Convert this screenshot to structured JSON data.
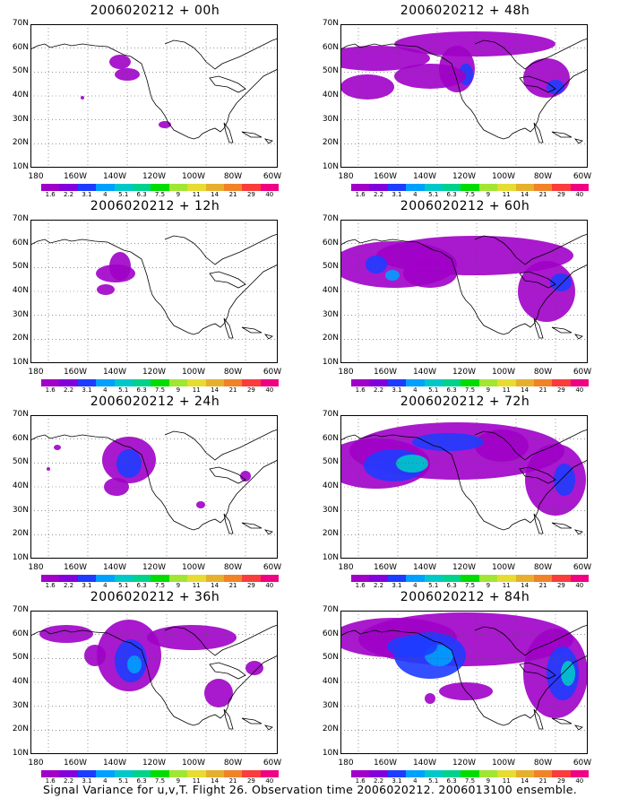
{
  "panels": [
    {
      "title": "2006020212 + 00h"
    },
    {
      "title": "2006020212 + 48h"
    },
    {
      "title": "2006020212 + 12h"
    },
    {
      "title": "2006020212 + 60h"
    },
    {
      "title": "2006020212 + 24h"
    },
    {
      "title": "2006020212 + 72h"
    },
    {
      "title": "2006020212 + 36h"
    },
    {
      "title": "2006020212 + 84h"
    }
  ],
  "lat_labels": [
    "70N",
    "60N",
    "50N",
    "40N",
    "30N",
    "20N",
    "10N"
  ],
  "lon_labels": [
    "180",
    "160W",
    "140W",
    "120W",
    "100W",
    "80W",
    "60W"
  ],
  "colorbar": {
    "labels": [
      "1.6",
      "2.2",
      "3.1",
      "4",
      "5.1",
      "6.3",
      "7.5",
      "9",
      "11",
      "14",
      "21",
      "29",
      "40"
    ],
    "colors": [
      "#a000c8",
      "#8200dc",
      "#1e3cff",
      "#00a0ff",
      "#00c8c8",
      "#00d28c",
      "#00dc00",
      "#a0e632",
      "#e6dc32",
      "#e6af2d",
      "#f08228",
      "#fa3c3c",
      "#f00082"
    ]
  },
  "footer": "Signal Variance for u,v,T. Flight 26. Observation time 2006020212. 2006013100 ensemble."
}
